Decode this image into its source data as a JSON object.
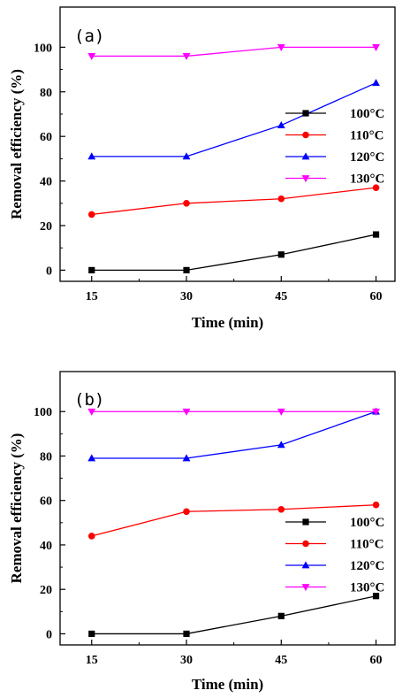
{
  "chart_data": [
    {
      "type": "line",
      "panel_label": "(a)",
      "xlabel": "Time (min)",
      "ylabel": "Removal efficiency (%)",
      "x": [
        15,
        30,
        45,
        60
      ],
      "x_ticks": [
        "15",
        "30",
        "45",
        "60"
      ],
      "y_ticks": [
        "0",
        "20",
        "40",
        "60",
        "80",
        "100"
      ],
      "xlim": [
        10,
        63
      ],
      "ylim": [
        -5,
        118
      ],
      "grid": false,
      "legend_position": "right",
      "series": [
        {
          "name": "100°C",
          "values": [
            0,
            0,
            7,
            16
          ],
          "color": "#000000",
          "marker": "square"
        },
        {
          "name": "110°C",
          "values": [
            25,
            30,
            32,
            37
          ],
          "color": "#ff0000",
          "marker": "circle"
        },
        {
          "name": "120°C",
          "values": [
            51,
            51,
            65,
            84
          ],
          "color": "#0000ff",
          "marker": "triangle-up"
        },
        {
          "name": "130°C",
          "values": [
            96,
            96,
            100,
            100
          ],
          "color": "#ff00ff",
          "marker": "triangle-down"
        }
      ]
    },
    {
      "type": "line",
      "panel_label": "(b)",
      "xlabel": "Time (min)",
      "ylabel": "Removal efficiency (%)",
      "x": [
        15,
        30,
        45,
        60
      ],
      "x_ticks": [
        "15",
        "30",
        "45",
        "60"
      ],
      "y_ticks": [
        "0",
        "20",
        "40",
        "60",
        "80",
        "100"
      ],
      "xlim": [
        10,
        63
      ],
      "ylim": [
        -5,
        118
      ],
      "grid": false,
      "legend_position": "bottom-right",
      "series": [
        {
          "name": "100°C",
          "values": [
            0,
            0,
            8,
            17
          ],
          "color": "#000000",
          "marker": "square"
        },
        {
          "name": "110°C",
          "values": [
            44,
            55,
            56,
            58
          ],
          "color": "#ff0000",
          "marker": "circle"
        },
        {
          "name": "120°C",
          "values": [
            79,
            79,
            85,
            100
          ],
          "color": "#0000ff",
          "marker": "triangle-up"
        },
        {
          "name": "130°C",
          "values": [
            100,
            100,
            100,
            100
          ],
          "color": "#ff00ff",
          "marker": "triangle-down"
        }
      ]
    }
  ]
}
